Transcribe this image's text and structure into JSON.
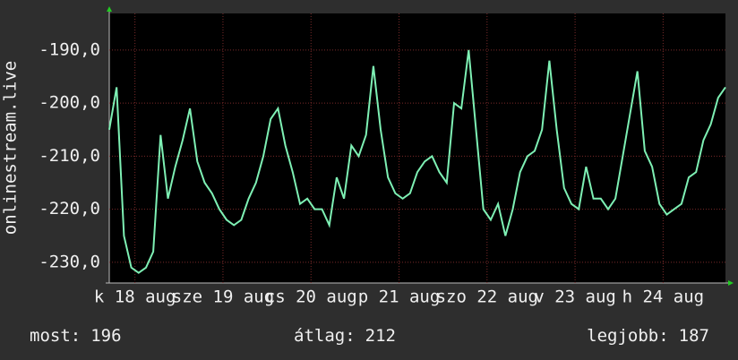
{
  "chart_data": {
    "type": "line",
    "y_axis_label": "onlinestream.live",
    "x": [
      0,
      2,
      4,
      6,
      8,
      10,
      12,
      14,
      16,
      18,
      20,
      22,
      24,
      26,
      28,
      30,
      32,
      34,
      36,
      38,
      40,
      42,
      44,
      46,
      48,
      50,
      52,
      54,
      56,
      58,
      60,
      62,
      64,
      66,
      68,
      70,
      72,
      74,
      76,
      78,
      80,
      82,
      84,
      86,
      88,
      90,
      92,
      94,
      96,
      98,
      100,
      102,
      104,
      106,
      108,
      110,
      112,
      114,
      116,
      118,
      120,
      122,
      124,
      126,
      128,
      130,
      132,
      134,
      136,
      138,
      140,
      142,
      144,
      146,
      148,
      150,
      152,
      154,
      156,
      158,
      160,
      162,
      164,
      166,
      168
    ],
    "series": [
      {
        "color": "#7ef0b4",
        "values": [
          -205,
          -197,
          -225,
          -231,
          -232,
          -231,
          -228,
          -206,
          -218,
          -212,
          -207,
          -201,
          -211,
          -215,
          -217,
          -220,
          -222,
          -223,
          -222,
          -218,
          -215,
          -210,
          -203,
          -201,
          -208,
          -213,
          -219,
          -218,
          -220,
          -220,
          -223,
          -214,
          -218,
          -208,
          -210,
          -206,
          -193,
          -205,
          -214,
          -217,
          -218,
          -217,
          -213,
          -211,
          -210,
          -213,
          -215,
          -200,
          -201,
          -190,
          -205,
          -220,
          -222,
          -219,
          -225,
          -220,
          -213,
          -210,
          -209,
          -205,
          -192,
          -205,
          -216,
          -219,
          -220,
          -212,
          -218,
          -218,
          -220,
          -218,
          -210,
          -202,
          -194,
          -209,
          -212,
          -219,
          -221,
          -220,
          -219,
          -214,
          -213,
          -207,
          -204,
          -199,
          -197
        ]
      }
    ],
    "xlim": [
      0,
      168
    ],
    "xticks": [
      {
        "value": 7,
        "label": "k 18 aug"
      },
      {
        "value": 31,
        "label": "sze 19 aug"
      },
      {
        "value": 55,
        "label": "cs 20 aug"
      },
      {
        "value": 79,
        "label": "p 21 aug"
      },
      {
        "value": 103,
        "label": "szo 22 aug"
      },
      {
        "value": 127,
        "label": "v 23 aug"
      },
      {
        "value": 151,
        "label": "h 24 aug"
      }
    ],
    "ylim": [
      -233.9,
      -183.1
    ],
    "yticks": [
      {
        "value": -190,
        "label": "-190,0"
      },
      {
        "value": -200,
        "label": "-200,0"
      },
      {
        "value": -210,
        "label": "-210,0"
      },
      {
        "value": -220,
        "label": "-220,0"
      },
      {
        "value": -230,
        "label": "-230,0"
      }
    ],
    "grid": true,
    "footer": [
      {
        "label": "most:",
        "value": 196
      },
      {
        "label": "átlag:",
        "value": 212
      },
      {
        "label": "legjobb:",
        "value": 187
      }
    ]
  }
}
